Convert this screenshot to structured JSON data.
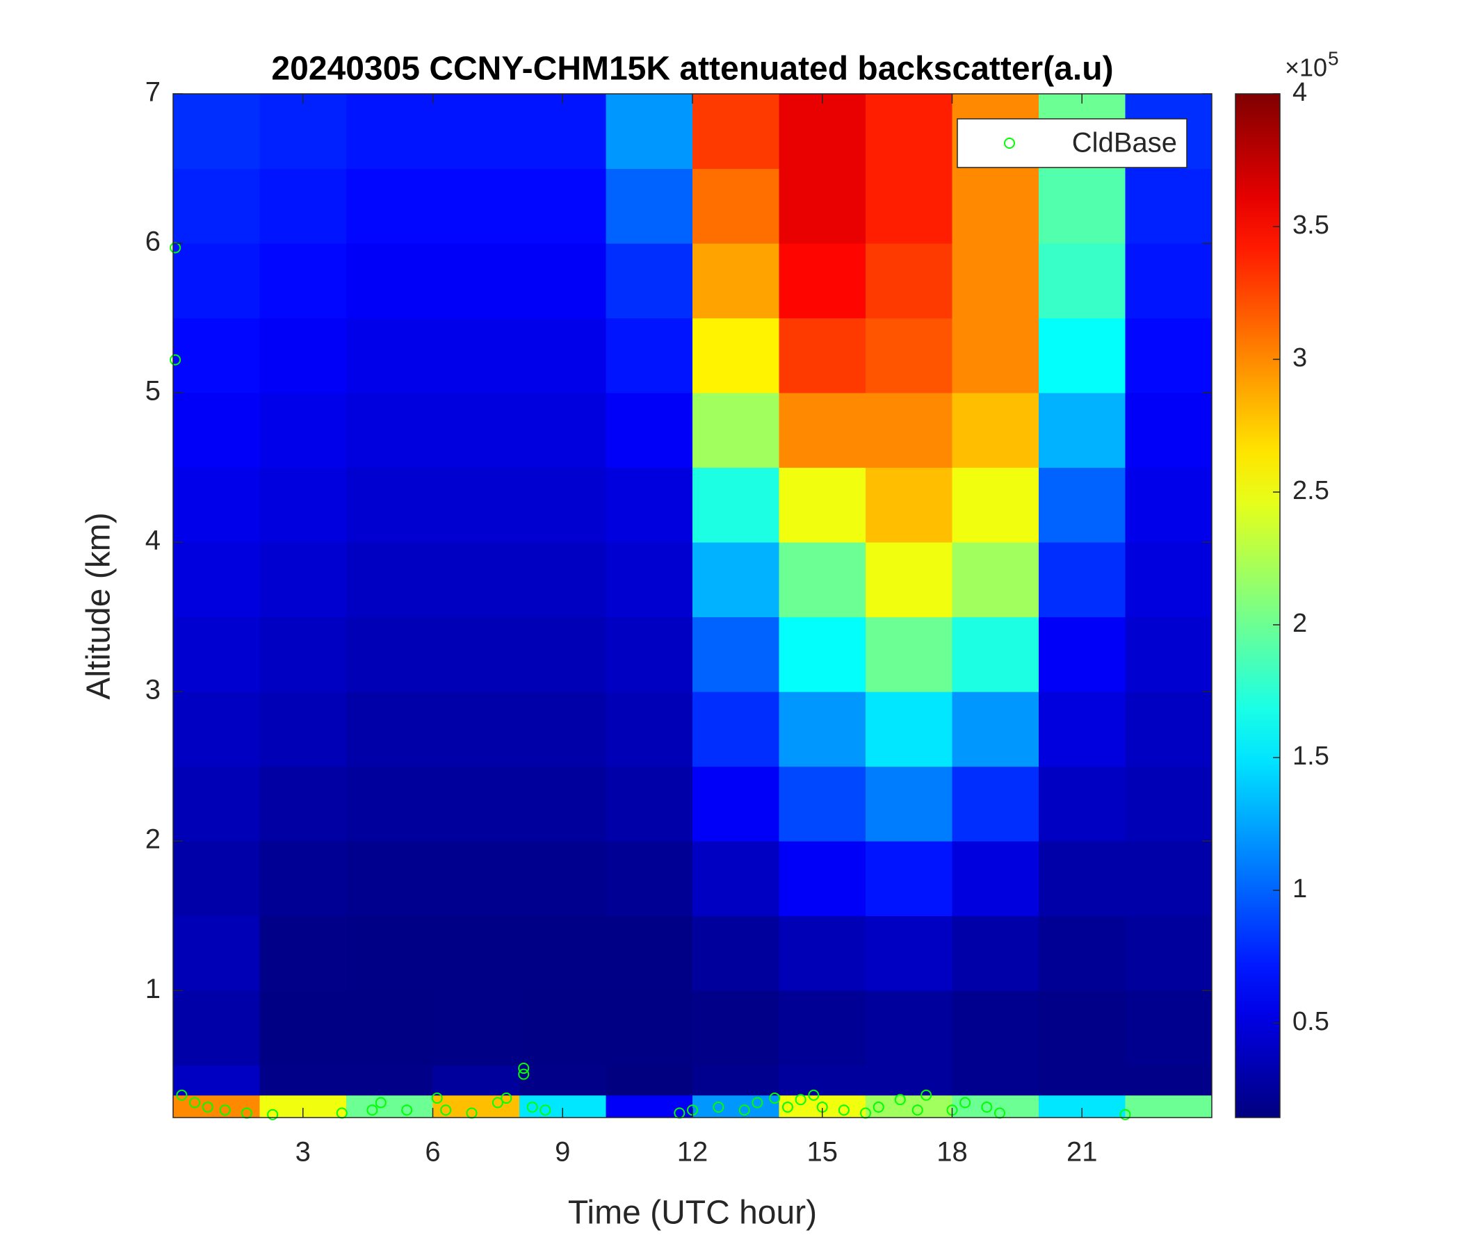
{
  "chart_data": {
    "type": "heatmap",
    "title": "20240305 CCNY-CHM15K attenuated backscatter(a.u)",
    "x_label": "Time (UTC hour)",
    "y_label": "Altitude (km)",
    "xlim": [
      0,
      24
    ],
    "xticks": [
      3,
      6,
      9,
      12,
      15,
      18,
      21
    ],
    "ylim": [
      0.15,
      7
    ],
    "yticks": [
      1,
      2,
      3,
      4,
      5,
      6,
      7
    ],
    "x_edges": [
      0,
      2,
      4,
      6,
      8,
      10,
      12,
      14,
      16,
      18,
      20,
      22,
      24
    ],
    "y_edges": [
      0.15,
      0.3,
      0.5,
      1,
      1.5,
      2,
      2.5,
      3,
      3.5,
      4,
      4.5,
      5,
      5.5,
      6,
      6.5,
      7
    ],
    "values": [
      [
        300000,
        250000,
        200000,
        280000,
        150000,
        60000,
        120000,
        250000,
        220000,
        200000,
        150000,
        200000
      ],
      [
        40000,
        18000,
        18000,
        25000,
        18000,
        15000,
        20000,
        25000,
        25000,
        20000,
        18000,
        18000
      ],
      [
        30000,
        16000,
        16000,
        17000,
        16000,
        16000,
        18000,
        22000,
        25000,
        20000,
        18000,
        20000
      ],
      [
        35000,
        18000,
        17000,
        17000,
        17000,
        17000,
        25000,
        35000,
        40000,
        30000,
        22000,
        25000
      ],
      [
        30000,
        22000,
        20000,
        20000,
        20000,
        22000,
        40000,
        60000,
        70000,
        50000,
        30000,
        30000
      ],
      [
        35000,
        28000,
        25000,
        25000,
        25000,
        30000,
        60000,
        90000,
        110000,
        80000,
        40000,
        35000
      ],
      [
        40000,
        35000,
        30000,
        30000,
        30000,
        35000,
        80000,
        120000,
        150000,
        120000,
        50000,
        40000
      ],
      [
        45000,
        40000,
        35000,
        35000,
        35000,
        40000,
        100000,
        160000,
        200000,
        170000,
        60000,
        45000
      ],
      [
        50000,
        45000,
        40000,
        40000,
        40000,
        45000,
        130000,
        200000,
        250000,
        220000,
        80000,
        50000
      ],
      [
        55000,
        50000,
        45000,
        45000,
        45000,
        50000,
        170000,
        250000,
        280000,
        250000,
        100000,
        55000
      ],
      [
        60000,
        55000,
        50000,
        50000,
        50000,
        60000,
        220000,
        300000,
        300000,
        280000,
        130000,
        60000
      ],
      [
        65000,
        60000,
        55000,
        55000,
        55000,
        70000,
        260000,
        330000,
        320000,
        300000,
        160000,
        65000
      ],
      [
        70000,
        65000,
        60000,
        60000,
        60000,
        80000,
        290000,
        350000,
        330000,
        300000,
        180000,
        70000
      ],
      [
        75000,
        70000,
        65000,
        65000,
        65000,
        100000,
        310000,
        360000,
        340000,
        300000,
        190000,
        75000
      ],
      [
        80000,
        75000,
        70000,
        70000,
        70000,
        120000,
        330000,
        360000,
        340000,
        300000,
        200000,
        80000
      ]
    ],
    "colormap": "jet",
    "clim": [
      14400,
      400000
    ],
    "cticks": [
      {
        "value": 50000,
        "label": "0.5"
      },
      {
        "value": 100000,
        "label": "1"
      },
      {
        "value": 150000,
        "label": "1.5"
      },
      {
        "value": 200000,
        "label": "2"
      },
      {
        "value": 250000,
        "label": "2.5"
      },
      {
        "value": 300000,
        "label": "3"
      },
      {
        "value": 350000,
        "label": "3.5"
      },
      {
        "value": 400000,
        "label": "4"
      }
    ],
    "colorbar_multiplier": {
      "base": "×10",
      "exponent": "5"
    },
    "legend_position": "upper right",
    "scatter": {
      "name": "CldBase",
      "color": "#00ff00",
      "x": [
        0.05,
        0.05,
        0.2,
        0.5,
        0.8,
        1.2,
        1.7,
        2.3,
        3.9,
        4.6,
        4.8,
        5.4,
        6.1,
        6.3,
        6.9,
        7.5,
        7.7,
        8.1,
        8.1,
        8.3,
        8.6,
        11.7,
        12.0,
        12.6,
        13.2,
        13.5,
        13.9,
        14.2,
        14.5,
        14.8,
        15.0,
        15.5,
        16.0,
        16.3,
        16.8,
        17.2,
        17.4,
        18.0,
        18.3,
        18.8,
        19.1,
        22.0
      ],
      "y": [
        5.97,
        5.22,
        0.3,
        0.25,
        0.22,
        0.2,
        0.18,
        0.17,
        0.18,
        0.2,
        0.25,
        0.2,
        0.28,
        0.2,
        0.18,
        0.25,
        0.28,
        0.48,
        0.44,
        0.22,
        0.2,
        0.18,
        0.2,
        0.22,
        0.2,
        0.25,
        0.28,
        0.22,
        0.27,
        0.3,
        0.22,
        0.2,
        0.18,
        0.22,
        0.27,
        0.2,
        0.3,
        0.2,
        0.25,
        0.22,
        0.18,
        0.17
      ]
    }
  }
}
